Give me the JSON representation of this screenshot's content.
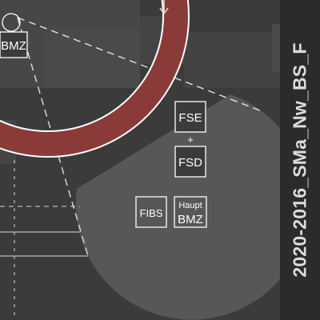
{
  "plan_code": "2020-2016_SMa_Nw_BS_F",
  "labels": {
    "bmz": "BMZ",
    "fse": "FSE",
    "plus": "+",
    "fsd": "FSD",
    "fibs": "FIBS",
    "haupt_bmz_line1": "Haupt",
    "haupt_bmz_line2": "BMZ"
  },
  "icons": {
    "flow_arrow": "arrow-down-icon",
    "detector": "circle-marker-icon"
  },
  "colors": {
    "background": "#3b3b3b",
    "building": "#474747",
    "zone": "#555555",
    "ring": "#8b3a3a",
    "line": "#ffffff",
    "sidebar": "#2b2b2b",
    "sidebar_text": "#dcdcdc"
  }
}
